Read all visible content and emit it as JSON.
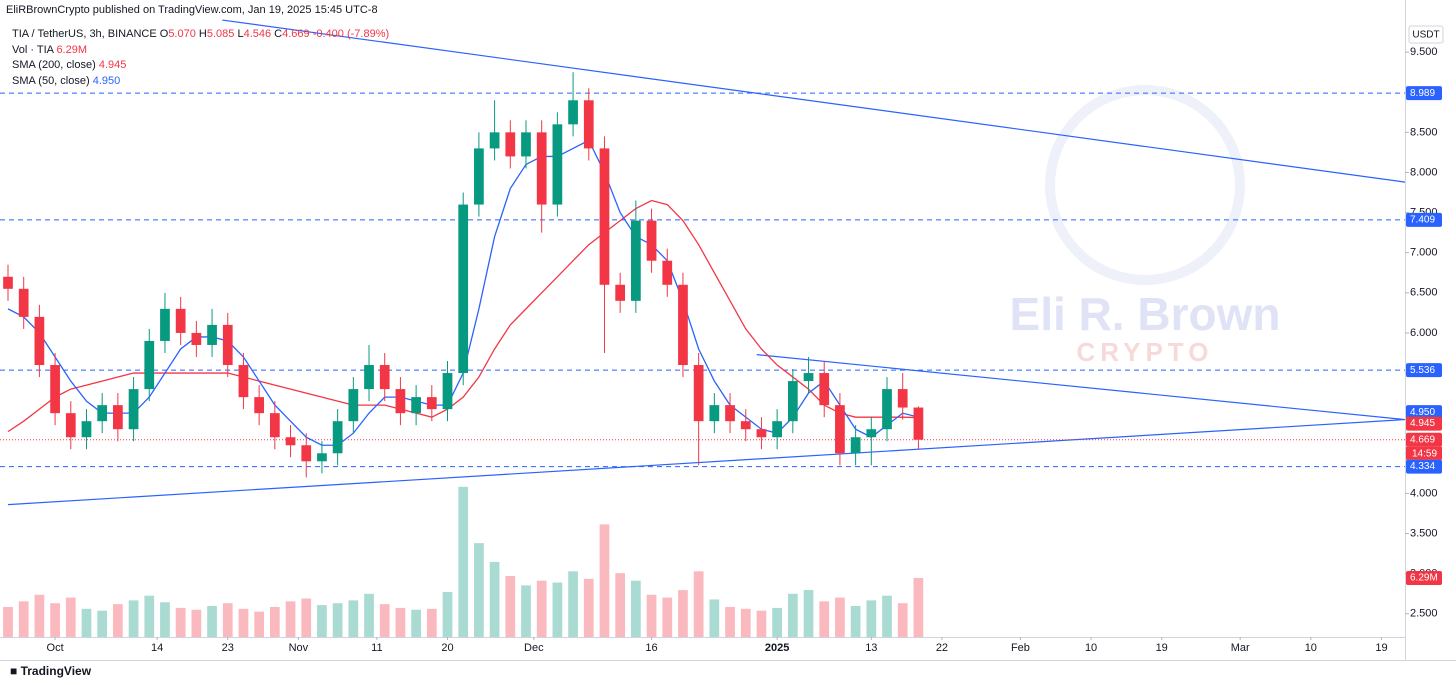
{
  "chart_data": {
    "type": "candlestick",
    "header": "EliRBrownCrypto published on TradingView.com, Jan 19, 2025 15:45 UTC-8",
    "symbol": "TIA / TetherUS, 3h, BINANCE",
    "ohlc": [
      {
        "label": "O",
        "value": "5.070"
      },
      {
        "label": "H",
        "value": "5.085"
      },
      {
        "label": "L",
        "value": "4.546"
      },
      {
        "label": "C",
        "value": "4.669"
      }
    ],
    "change": "-0.400 (-7.89%)",
    "volume_legend": {
      "name": "Vol · TIA",
      "value": "6.29M"
    },
    "sma_legend": [
      {
        "name": "SMA (200, close)",
        "value": "4.945"
      },
      {
        "name": "SMA (50, close)",
        "value": "4.950"
      }
    ],
    "currency": "USDT",
    "watermark": [
      "Eli R. Brown",
      "CRYPTO"
    ],
    "logo": "TradingView",
    "xlim": [
      0,
      178
    ],
    "xticks": [
      {
        "value": 6,
        "label": "Oct"
      },
      {
        "value": 19,
        "label": "14"
      },
      {
        "value": 28,
        "label": "23"
      },
      {
        "value": 37,
        "label": "Nov"
      },
      {
        "value": 47,
        "label": "11"
      },
      {
        "value": 56,
        "label": "20"
      },
      {
        "value": 67,
        "label": "Dec"
      },
      {
        "value": 82,
        "label": "16"
      },
      {
        "value": 98,
        "label": "2025"
      },
      {
        "value": 110,
        "label": "13"
      },
      {
        "value": 119,
        "label": "22"
      },
      {
        "value": 129,
        "label": "Feb"
      },
      {
        "value": 138,
        "label": "10"
      },
      {
        "value": 147,
        "label": "19"
      },
      {
        "value": 157,
        "label": "Mar"
      },
      {
        "value": 166,
        "label": "10"
      },
      {
        "value": 175,
        "label": "19"
      }
    ],
    "ylim": [
      2.21,
      10.05
    ],
    "yticks": [
      {
        "value": 2.5,
        "label": "2.500"
      },
      {
        "value": 3,
        "label": "3.000"
      },
      {
        "value": 3.5,
        "label": "3.500"
      },
      {
        "value": 4,
        "label": "4.000"
      },
      {
        "value": 4.5,
        "label": "4.500"
      },
      {
        "value": 5,
        "label": "5.000"
      },
      {
        "value": 5.5,
        "label": "5.500"
      },
      {
        "value": 6,
        "label": "6.000"
      },
      {
        "value": 6.5,
        "label": "6.500"
      },
      {
        "value": 7,
        "label": "7.000"
      },
      {
        "value": 7.5,
        "label": "7.500"
      },
      {
        "value": 8,
        "label": "8.000"
      },
      {
        "value": 8.5,
        "label": "8.500"
      },
      {
        "value": 9,
        "label": "9.000"
      },
      {
        "value": 9.5,
        "label": "9.500"
      }
    ],
    "vlim": [
      0,
      67
    ],
    "up_color": "#089981",
    "down_color": "#f23645",
    "x": [
      0,
      2,
      4,
      6,
      8,
      10,
      12,
      14,
      16,
      18,
      20,
      22,
      24,
      26,
      28,
      30,
      32,
      34,
      36,
      38,
      40,
      42,
      44,
      46,
      48,
      50,
      52,
      54,
      56,
      58,
      60,
      62,
      64,
      66,
      68,
      70,
      72,
      74,
      76,
      78,
      80,
      82,
      84,
      86,
      88,
      90,
      92,
      94,
      96,
      98,
      100,
      102,
      104,
      106,
      108,
      110,
      112,
      114,
      116
    ],
    "open": [
      6.7,
      6.55,
      6.2,
      5.6,
      5.0,
      4.7,
      4.9,
      5.1,
      4.8,
      5.3,
      5.9,
      6.3,
      6.0,
      5.85,
      6.1,
      5.6,
      5.2,
      5.0,
      4.7,
      4.6,
      4.4,
      4.5,
      4.9,
      5.3,
      5.6,
      5.3,
      5.0,
      5.2,
      5.05,
      5.5,
      7.6,
      8.3,
      8.5,
      8.2,
      8.5,
      7.6,
      8.6,
      8.9,
      8.3,
      6.6,
      6.4,
      7.4,
      6.9,
      6.6,
      5.6,
      4.9,
      5.1,
      4.9,
      4.8,
      4.7,
      4.9,
      5.4,
      5.5,
      5.1,
      4.5,
      4.7,
      4.8,
      5.3,
      5.07
    ],
    "high": [
      6.85,
      6.7,
      6.35,
      5.75,
      5.15,
      5.05,
      5.25,
      5.25,
      5.45,
      6.05,
      6.5,
      6.45,
      6.15,
      6.3,
      6.25,
      5.75,
      5.35,
      5.15,
      4.85,
      4.75,
      4.65,
      5.05,
      5.45,
      5.85,
      5.75,
      5.45,
      5.35,
      5.35,
      5.65,
      7.75,
      8.5,
      8.9,
      8.65,
      8.65,
      8.65,
      8.75,
      9.25,
      9.05,
      8.45,
      6.75,
      7.65,
      7.55,
      7.05,
      6.75,
      5.75,
      5.25,
      5.25,
      5.05,
      4.95,
      5.05,
      5.55,
      5.7,
      5.65,
      5.25,
      4.85,
      4.95,
      5.45,
      5.5,
      5.085
    ],
    "low": [
      6.4,
      6.05,
      5.45,
      4.85,
      4.55,
      4.55,
      4.75,
      4.65,
      4.65,
      5.15,
      5.75,
      5.85,
      5.7,
      5.7,
      5.45,
      5.05,
      4.85,
      4.55,
      4.45,
      4.2,
      4.25,
      4.35,
      4.75,
      5.15,
      5.15,
      4.85,
      4.85,
      4.9,
      4.9,
      5.35,
      7.45,
      8.15,
      8.05,
      8.05,
      7.25,
      7.45,
      8.45,
      8.15,
      5.75,
      6.25,
      6.25,
      6.75,
      6.45,
      5.45,
      4.35,
      4.75,
      4.75,
      4.65,
      4.55,
      4.55,
      4.75,
      5.25,
      4.95,
      4.35,
      4.35,
      4.35,
      4.65,
      4.92,
      4.546
    ],
    "close": [
      6.55,
      6.2,
      5.6,
      5.0,
      4.7,
      4.9,
      5.1,
      4.8,
      5.3,
      5.9,
      6.3,
      6.0,
      5.85,
      6.1,
      5.6,
      5.2,
      5.0,
      4.7,
      4.6,
      4.4,
      4.5,
      4.9,
      5.3,
      5.6,
      5.3,
      5.0,
      5.2,
      5.05,
      5.5,
      7.6,
      8.3,
      8.5,
      8.2,
      8.5,
      7.6,
      8.6,
      8.9,
      8.3,
      6.6,
      6.4,
      7.4,
      6.9,
      6.6,
      5.6,
      4.9,
      5.1,
      4.9,
      4.8,
      4.7,
      4.9,
      5.4,
      5.5,
      5.1,
      4.5,
      4.7,
      4.8,
      5.3,
      5.07,
      4.669
    ],
    "volume": [
      3.2,
      3.8,
      4.5,
      3.6,
      4.2,
      3.0,
      2.8,
      3.5,
      3.9,
      4.4,
      3.7,
      3.1,
      2.9,
      3.3,
      3.6,
      3.0,
      2.7,
      3.2,
      3.8,
      4.1,
      3.4,
      3.6,
      3.9,
      4.6,
      3.5,
      3.1,
      2.9,
      3.0,
      4.8,
      16,
      10,
      8,
      6.5,
      5.5,
      6,
      5.8,
      7,
      6.2,
      12,
      6.8,
      6,
      4.5,
      4.2,
      5,
      7,
      4,
      3.2,
      3,
      2.8,
      3.1,
      4.6,
      5,
      3.8,
      4.2,
      3.3,
      3.9,
      4.4,
      3.6,
      6.29
    ],
    "volume_value_labels": {
      "58": "6.29M"
    },
    "sma50": {
      "color": "#2962ff",
      "values": [
        6.3,
        6.2,
        6.0,
        5.7,
        5.4,
        5.15,
        5.0,
        5.0,
        5.0,
        5.2,
        5.5,
        5.8,
        5.95,
        5.95,
        5.9,
        5.7,
        5.4,
        5.1,
        4.9,
        4.7,
        4.6,
        4.6,
        4.75,
        5.0,
        5.2,
        5.2,
        5.15,
        5.1,
        5.1,
        5.5,
        6.3,
        7.2,
        7.8,
        8.1,
        8.2,
        8.2,
        8.3,
        8.4,
        8.0,
        7.5,
        7.2,
        7.1,
        6.9,
        6.4,
        5.8,
        5.4,
        5.1,
        4.95,
        4.8,
        4.75,
        4.95,
        5.25,
        5.4,
        5.1,
        4.8,
        4.7,
        4.85,
        5.0,
        4.95
      ]
    },
    "sma200": {
      "color": "#f23645",
      "values": [
        4.77,
        4.9,
        5.05,
        5.2,
        5.3,
        5.35,
        5.4,
        5.45,
        5.5,
        5.5,
        5.5,
        5.5,
        5.5,
        5.5,
        5.5,
        5.45,
        5.4,
        5.35,
        5.3,
        5.25,
        5.2,
        5.15,
        5.1,
        5.1,
        5.1,
        5.05,
        5.0,
        4.95,
        5.05,
        5.2,
        5.45,
        5.8,
        6.1,
        6.3,
        6.5,
        6.7,
        6.9,
        7.1,
        7.25,
        7.4,
        7.55,
        7.65,
        7.6,
        7.4,
        7.1,
        6.75,
        6.4,
        6.05,
        5.8,
        5.6,
        5.45,
        5.3,
        5.1,
        5.0,
        4.95,
        4.95,
        4.95,
        4.95,
        4.945
      ]
    },
    "levels": [
      8.989,
      7.409,
      5.536,
      4.334
    ],
    "level_color": "#2962ff",
    "trendlines": [
      {
        "x": [
          27.3,
          178
        ],
        "y": [
          9.9,
          7.88
        ]
      },
      {
        "x": [
          95.4,
          178
        ],
        "y": [
          5.73,
          4.92
        ]
      },
      {
        "x": [
          0,
          178
        ],
        "y": [
          3.86,
          4.92
        ]
      }
    ],
    "price_labels": [
      {
        "value": 4.95,
        "label": "4.950",
        "color": "#2962ff"
      },
      {
        "value": 4.945,
        "color": "#f23645"
      },
      {
        "value": 4.669,
        "color": "#f23645"
      }
    ],
    "countdown": "14:59"
  }
}
